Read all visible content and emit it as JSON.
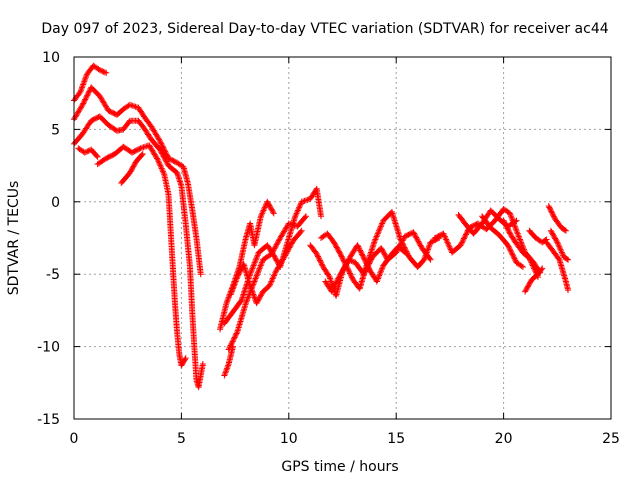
{
  "chart_data": {
    "type": "scatter",
    "title": "Day 097 of 2023, Sidereal Day-to-day VTEC variation (SDTVAR) for receiver ac44",
    "xlabel": "GPS time / hours",
    "ylabel": "SDTVAR / TECUs",
    "xlim": [
      0,
      25
    ],
    "ylim": [
      -15,
      10
    ],
    "xticks": [
      0,
      5,
      10,
      15,
      20,
      25
    ],
    "yticks": [
      -15,
      -10,
      -5,
      0,
      5,
      10
    ],
    "grid": true,
    "marker": "+",
    "color": "#ff0000",
    "tracks": [
      [
        [
          0.0,
          7.0
        ],
        [
          0.3,
          7.6
        ],
        [
          0.6,
          8.8
        ],
        [
          0.9,
          9.4
        ],
        [
          1.2,
          9.1
        ],
        [
          1.5,
          8.9
        ]
      ],
      [
        [
          0.0,
          5.7
        ],
        [
          0.4,
          6.7
        ],
        [
          0.8,
          7.9
        ],
        [
          1.2,
          7.3
        ],
        [
          1.6,
          6.3
        ],
        [
          2.0,
          6.0
        ],
        [
          2.3,
          6.4
        ],
        [
          2.6,
          6.7
        ],
        [
          3.0,
          6.5
        ],
        [
          3.3,
          5.8
        ],
        [
          3.6,
          5.2
        ],
        [
          4.0,
          4.2
        ],
        [
          4.4,
          3.0
        ],
        [
          4.8,
          2.7
        ],
        [
          5.1,
          2.4
        ],
        [
          5.3,
          1.3
        ],
        [
          5.5,
          -0.5
        ],
        [
          5.7,
          -2.5
        ],
        [
          5.9,
          -5.0
        ]
      ],
      [
        [
          0.0,
          4.0
        ],
        [
          0.4,
          4.7
        ],
        [
          0.8,
          5.6
        ],
        [
          1.2,
          5.9
        ],
        [
          1.6,
          5.3
        ],
        [
          2.0,
          4.9
        ],
        [
          2.3,
          5.0
        ],
        [
          2.6,
          5.6
        ],
        [
          3.0,
          5.6
        ],
        [
          3.3,
          5.0
        ],
        [
          3.6,
          4.3
        ],
        [
          4.0,
          3.6
        ],
        [
          4.4,
          2.5
        ],
        [
          4.8,
          2.0
        ],
        [
          5.0,
          1.1
        ],
        [
          5.2,
          -1.5
        ],
        [
          5.4,
          -4.5
        ],
        [
          5.5,
          -7.5
        ],
        [
          5.6,
          -10.0
        ],
        [
          5.7,
          -12.3
        ],
        [
          5.8,
          -12.8
        ],
        [
          6.0,
          -11.2
        ]
      ],
      [
        [
          0.2,
          3.7
        ],
        [
          0.5,
          3.4
        ],
        [
          0.8,
          3.6
        ],
        [
          1.1,
          3.1
        ]
      ],
      [
        [
          1.1,
          2.6
        ],
        [
          1.5,
          3.0
        ],
        [
          1.9,
          3.3
        ],
        [
          2.3,
          3.8
        ],
        [
          2.7,
          3.4
        ],
        [
          3.1,
          3.7
        ],
        [
          3.5,
          3.9
        ],
        [
          3.9,
          2.9
        ],
        [
          4.2,
          1.9
        ],
        [
          4.4,
          0.5
        ],
        [
          4.5,
          -2.0
        ],
        [
          4.6,
          -4.5
        ],
        [
          4.7,
          -7.0
        ],
        [
          4.8,
          -9.0
        ],
        [
          4.9,
          -10.5
        ],
        [
          5.0,
          -11.3
        ],
        [
          5.2,
          -10.8
        ]
      ],
      [
        [
          2.2,
          1.3
        ],
        [
          2.6,
          2.0
        ],
        [
          2.9,
          2.8
        ],
        [
          3.2,
          3.3
        ]
      ],
      [
        [
          7.0,
          -8.4
        ],
        [
          7.4,
          -7.6
        ],
        [
          7.8,
          -6.8
        ],
        [
          8.2,
          -5.0
        ],
        [
          8.6,
          -3.5
        ],
        [
          9.0,
          -3.0
        ],
        [
          9.3,
          -3.7
        ],
        [
          9.6,
          -4.5
        ],
        [
          10.0,
          -2.5
        ],
        [
          10.3,
          -1.0
        ],
        [
          10.6,
          0.0
        ],
        [
          11.0,
          0.2
        ],
        [
          11.3,
          0.9
        ],
        [
          11.5,
          -1.0
        ]
      ],
      [
        [
          7.2,
          -10.2
        ],
        [
          7.6,
          -9.0
        ],
        [
          8.0,
          -7.0
        ],
        [
          8.4,
          -5.5
        ],
        [
          8.8,
          -4.0
        ],
        [
          9.2,
          -3.6
        ],
        [
          9.6,
          -2.5
        ],
        [
          10.0,
          -1.5
        ],
        [
          10.4,
          -1.7
        ],
        [
          10.8,
          -1.0
        ]
      ],
      [
        [
          6.8,
          -8.8
        ],
        [
          7.1,
          -7.0
        ],
        [
          7.4,
          -5.8
        ],
        [
          7.7,
          -4.5
        ],
        [
          8.0,
          -2.5
        ],
        [
          8.2,
          -1.5
        ],
        [
          8.4,
          -3.0
        ],
        [
          8.7,
          -1.0
        ],
        [
          9.0,
          0.0
        ],
        [
          9.3,
          -0.8
        ]
      ],
      [
        [
          7.3,
          -6.4
        ],
        [
          7.6,
          -5.2
        ],
        [
          7.9,
          -4.3
        ],
        [
          8.2,
          -5.8
        ],
        [
          8.5,
          -7.0
        ],
        [
          8.8,
          -6.2
        ],
        [
          9.1,
          -5.8
        ],
        [
          9.4,
          -4.8
        ],
        [
          9.8,
          -3.8
        ],
        [
          10.2,
          -2.7
        ],
        [
          10.6,
          -2.0
        ]
      ],
      [
        [
          7.0,
          -12.0
        ],
        [
          7.2,
          -11.2
        ],
        [
          7.4,
          -10.0
        ]
      ],
      [
        [
          11.5,
          -2.5
        ],
        [
          11.8,
          -2.2
        ],
        [
          12.1,
          -2.8
        ],
        [
          12.4,
          -3.6
        ],
        [
          12.7,
          -4.5
        ],
        [
          13.0,
          -5.4
        ],
        [
          13.3,
          -6.0
        ],
        [
          13.6,
          -4.5
        ],
        [
          14.0,
          -2.7
        ],
        [
          14.4,
          -1.3
        ],
        [
          14.8,
          -0.7
        ],
        [
          15.2,
          -2.6
        ],
        [
          15.6,
          -3.8
        ],
        [
          16.0,
          -4.5
        ],
        [
          16.3,
          -4.0
        ],
        [
          16.6,
          -2.8
        ],
        [
          17.0,
          -2.5
        ]
      ],
      [
        [
          11.0,
          -3.0
        ],
        [
          11.3,
          -3.6
        ],
        [
          11.6,
          -4.5
        ],
        [
          11.9,
          -5.2
        ],
        [
          12.2,
          -6.5
        ],
        [
          12.5,
          -4.8
        ],
        [
          12.8,
          -4.0
        ],
        [
          13.1,
          -4.2
        ],
        [
          13.5,
          -5.0
        ],
        [
          13.9,
          -3.8
        ],
        [
          14.3,
          -3.2
        ],
        [
          14.6,
          -4.0
        ],
        [
          15.0,
          -3.5
        ],
        [
          15.4,
          -2.4
        ],
        [
          15.8,
          -2.1
        ],
        [
          16.2,
          -3.2
        ],
        [
          16.6,
          -4.0
        ]
      ],
      [
        [
          11.7,
          -5.5
        ],
        [
          12.0,
          -6.2
        ],
        [
          12.3,
          -5.3
        ],
        [
          12.6,
          -4.5
        ],
        [
          12.9,
          -3.7
        ],
        [
          13.2,
          -3.0
        ],
        [
          13.5,
          -3.9
        ],
        [
          13.8,
          -4.8
        ],
        [
          14.1,
          -5.5
        ],
        [
          14.4,
          -4.4
        ],
        [
          14.8,
          -3.6
        ],
        [
          15.1,
          -3.1
        ],
        [
          15.5,
          -3.6
        ]
      ],
      [
        [
          16.8,
          -2.5
        ],
        [
          17.2,
          -2.2
        ],
        [
          17.6,
          -3.5
        ],
        [
          18.0,
          -3.0
        ],
        [
          18.4,
          -1.8
        ],
        [
          18.8,
          -1.5
        ],
        [
          19.2,
          -1.9
        ],
        [
          19.6,
          -1.3
        ],
        [
          20.0,
          -0.5
        ],
        [
          20.3,
          -0.8
        ],
        [
          20.6,
          -2.0
        ],
        [
          21.0,
          -3.5
        ],
        [
          21.4,
          -4.2
        ],
        [
          21.7,
          -4.9
        ]
      ],
      [
        [
          17.9,
          -0.9
        ],
        [
          18.2,
          -1.5
        ],
        [
          18.6,
          -2.2
        ],
        [
          19.0,
          -1.5
        ],
        [
          19.4,
          -0.6
        ],
        [
          19.8,
          -1.2
        ],
        [
          20.2,
          -1.7
        ],
        [
          20.6,
          -1.3
        ]
      ],
      [
        [
          19.0,
          -1.0
        ],
        [
          19.4,
          -1.8
        ],
        [
          19.8,
          -2.3
        ],
        [
          20.2,
          -3.0
        ],
        [
          20.6,
          -4.2
        ],
        [
          20.9,
          -4.5
        ]
      ],
      [
        [
          20.0,
          -1.3
        ],
        [
          20.3,
          -2.2
        ],
        [
          20.6,
          -2.9
        ],
        [
          20.9,
          -3.5
        ],
        [
          21.2,
          -3.9
        ],
        [
          21.6,
          -5.2
        ]
      ],
      [
        [
          21.0,
          -6.2
        ],
        [
          21.3,
          -5.4
        ],
        [
          21.6,
          -5.0
        ],
        [
          21.8,
          -4.6
        ]
      ],
      [
        [
          21.2,
          -2.0
        ],
        [
          21.5,
          -2.5
        ],
        [
          21.8,
          -2.8
        ],
        [
          22.0,
          -2.6
        ]
      ],
      [
        [
          22.0,
          -2.8
        ],
        [
          22.3,
          -3.4
        ],
        [
          22.6,
          -4.0
        ],
        [
          22.9,
          -5.5
        ],
        [
          23.0,
          -6.1
        ]
      ],
      [
        [
          22.1,
          -0.3
        ],
        [
          22.4,
          -1.2
        ],
        [
          22.7,
          -1.8
        ],
        [
          22.9,
          -2.0
        ]
      ],
      [
        [
          22.2,
          -2.0
        ],
        [
          22.5,
          -2.8
        ],
        [
          22.8,
          -3.8
        ],
        [
          23.0,
          -4.0
        ]
      ]
    ]
  }
}
